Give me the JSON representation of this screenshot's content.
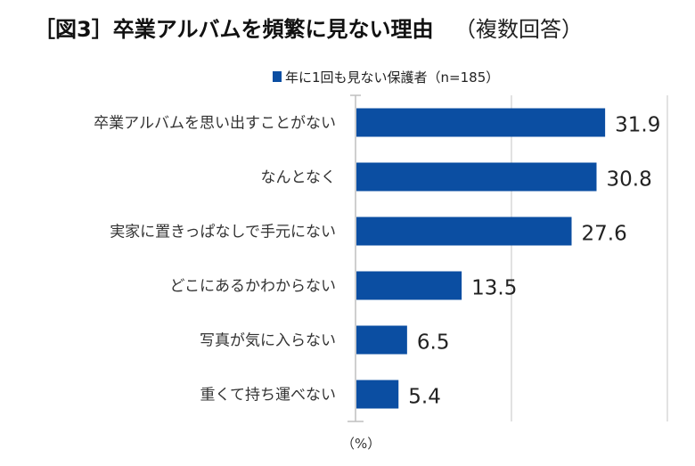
{
  "chart_data": {
    "type": "bar",
    "orientation": "horizontal",
    "title": "［図3］卒業アルバムを頻繁に見ない理由",
    "subtitle": "（複数回答）",
    "xlabel": "（%）",
    "ylabel": "",
    "xlim": [
      0,
      40
    ],
    "gridlines": [
      20,
      40
    ],
    "grid": true,
    "legend_position": "top",
    "bar_color": "#0b4ea2",
    "categories": [
      "卒業アルバムを思い出すことがない",
      "なんとなく",
      "実家に置きっぱなしで手元にない",
      "どこにあるかわからない",
      "写真が気に入らない",
      "重くて持ち運べない"
    ],
    "series": [
      {
        "name": "年に1回も見ない保護者（n=185）",
        "values": [
          31.9,
          30.8,
          27.6,
          13.5,
          6.5,
          5.4
        ]
      }
    ],
    "value_labels": [
      "31.9",
      "30.8",
      "27.6",
      "13.5",
      "6.5",
      "5.4"
    ]
  }
}
